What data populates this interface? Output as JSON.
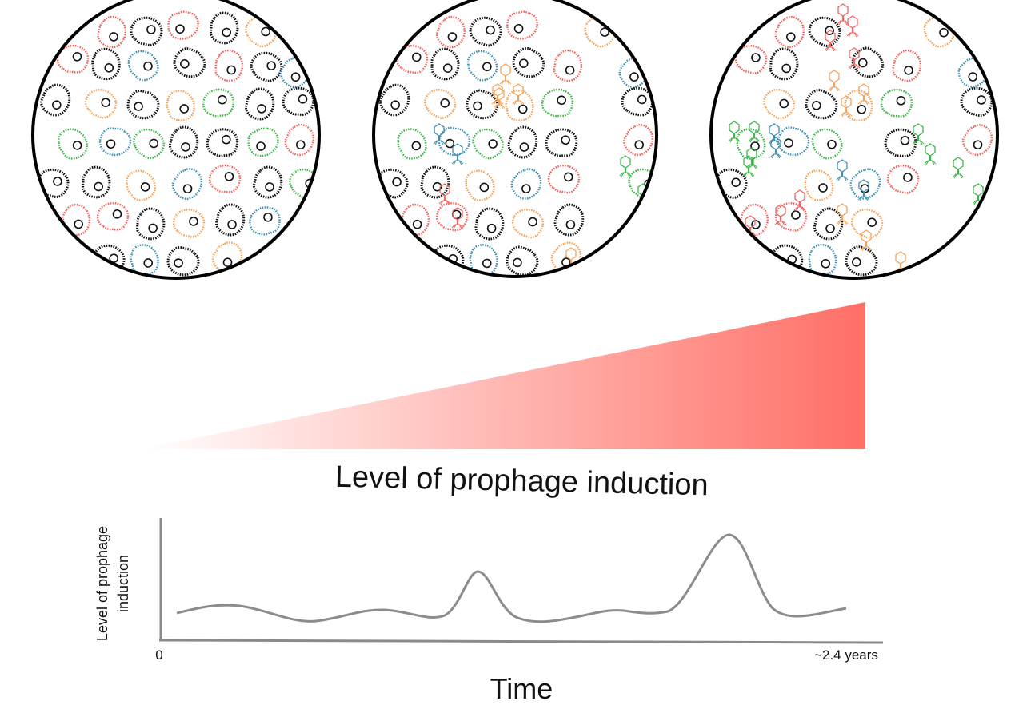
{
  "colors": {
    "black": "#111111",
    "red": "#f0635f",
    "green": "#3fb64a",
    "orange": "#f4a35a",
    "blue": "#3f8fb0",
    "wedge": "#ff6f66",
    "curve": "#8c8c8c",
    "axis": "#8a8a8a"
  },
  "icons": [
    "bacterium-icon",
    "phage-icon"
  ],
  "wedge_label": "Level of prophage induction",
  "timeline": {
    "ylabel_line1": "Level of prophage",
    "ylabel_line2": "induction",
    "x_start": "0",
    "x_end": "~2.4 years",
    "xlabel": "Time"
  },
  "panels": [
    {
      "phage_level": "none"
    },
    {
      "phage_level": "moderate"
    },
    {
      "phage_level": "high"
    }
  ]
}
